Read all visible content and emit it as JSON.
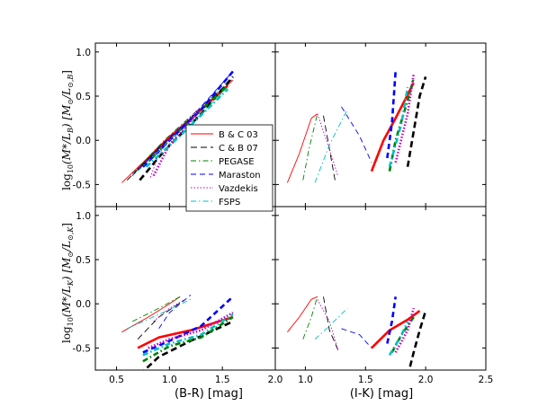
{
  "chart_data": {
    "type": "line",
    "xlabels": [
      "(B-R) [mag]",
      "(I-K) [mag]"
    ],
    "ylabels": [
      [
        "log",
        "10",
        "(M*/L",
        "B",
        ")  [M",
        "⊙",
        "/L",
        "⊙,B",
        "]"
      ],
      [
        "log",
        "10",
        "(M*/L",
        "K",
        ")  [M",
        "⊙",
        "/L",
        "⊙,K",
        "]"
      ]
    ],
    "xlim_left": [
      0.3,
      2.0
    ],
    "xlim_right": [
      0.75,
      2.5
    ],
    "ylim": [
      -0.75,
      1.1
    ],
    "xticks_left": [
      "0.5",
      "1.0",
      "1.5",
      "2.0"
    ],
    "xticks_right": [
      "1.0",
      "1.5",
      "2.0",
      "2.5"
    ],
    "yticks": [
      "-0.5",
      "0.0",
      "0.5",
      "1.0"
    ],
    "legend_position": "upper-left of top-right panel",
    "legend": [
      {
        "name": "B & C 03",
        "color": "#ff0000",
        "dash": ""
      },
      {
        "name": "C & B 07",
        "color": "#000000",
        "dash": "7,4"
      },
      {
        "name": "PEGASE",
        "color": "#008000",
        "dash": "6,3,1.5,3"
      },
      {
        "name": "Maraston",
        "color": "#0000ff",
        "dash": "6,4"
      },
      {
        "name": "Vazdekis",
        "color": "#bf00bf",
        "dash": "1.5,2"
      },
      {
        "name": "FSPS",
        "color": "#00bfbf",
        "dash": "6,3,1.5,3"
      }
    ],
    "panels": [
      {
        "name": "top-left: log M/L_B vs (B-R)",
        "series": [
          {
            "name": "B & C 03",
            "thin": [
              [
                0.55,
                -0.48
              ],
              [
                0.75,
                -0.25
              ],
              [
                1.0,
                0.05
              ],
              [
                1.3,
                0.35
              ],
              [
                1.6,
                0.68
              ]
            ],
            "thick": [
              [
                0.7,
                -0.33
              ],
              [
                0.9,
                -0.08
              ],
              [
                1.2,
                0.24
              ],
              [
                1.55,
                0.62
              ]
            ]
          },
          {
            "name": "C & B 07",
            "thin": [
              [
                0.6,
                -0.45
              ],
              [
                0.85,
                -0.15
              ],
              [
                1.2,
                0.25
              ],
              [
                1.6,
                0.7
              ]
            ],
            "thick": [
              [
                0.72,
                -0.45
              ],
              [
                0.95,
                -0.12
              ],
              [
                1.3,
                0.3
              ],
              [
                1.6,
                0.72
              ]
            ]
          },
          {
            "name": "PEGASE",
            "thin": [
              [
                0.65,
                -0.38
              ],
              [
                0.95,
                0.0
              ],
              [
                1.3,
                0.38
              ],
              [
                1.55,
                0.65
              ]
            ],
            "thick": [
              [
                0.75,
                -0.3
              ],
              [
                1.1,
                0.12
              ],
              [
                1.55,
                0.62
              ]
            ]
          },
          {
            "name": "Maraston",
            "thin": [
              [
                0.65,
                -0.4
              ],
              [
                0.9,
                -0.08
              ],
              [
                1.2,
                0.25
              ],
              [
                1.6,
                0.78
              ]
            ],
            "thick": [
              [
                0.75,
                -0.3
              ],
              [
                1.0,
                0.0
              ],
              [
                1.3,
                0.35
              ],
              [
                1.6,
                0.78
              ]
            ]
          },
          {
            "name": "Vazdekis",
            "thin": [
              [
                0.82,
                -0.42
              ],
              [
                0.9,
                -0.15
              ],
              [
                1.1,
                0.15
              ],
              [
                1.3,
                0.38
              ]
            ],
            "thick": [
              [
                0.85,
                -0.4
              ],
              [
                1.0,
                -0.05
              ],
              [
                1.3,
                0.35
              ]
            ]
          },
          {
            "name": "FSPS",
            "thin": [
              [
                0.7,
                -0.35
              ],
              [
                1.0,
                0.0
              ],
              [
                1.3,
                0.3
              ],
              [
                1.55,
                0.6
              ]
            ],
            "thick": [
              [
                0.78,
                -0.3
              ],
              [
                1.1,
                0.05
              ],
              [
                1.55,
                0.58
              ]
            ]
          }
        ]
      },
      {
        "name": "top-right: log M/L_B vs (I-K)",
        "series": [
          {
            "name": "B & C 03",
            "thin": [
              [
                0.85,
                -0.48
              ],
              [
                0.95,
                -0.15
              ],
              [
                1.05,
                0.25
              ],
              [
                1.1,
                0.3
              ]
            ],
            "thick": [
              [
                1.55,
                -0.35
              ],
              [
                1.65,
                0.0
              ],
              [
                1.75,
                0.25
              ],
              [
                1.9,
                0.65
              ]
            ]
          },
          {
            "name": "C & B 07",
            "thin": [
              [
                1.15,
                0.28
              ],
              [
                1.2,
                -0.1
              ],
              [
                1.25,
                -0.48
              ]
            ],
            "thick": [
              [
                1.85,
                -0.3
              ],
              [
                1.9,
                0.1
              ],
              [
                1.95,
                0.5
              ],
              [
                2.0,
                0.72
              ]
            ]
          },
          {
            "name": "PEGASE",
            "thin": [
              [
                0.98,
                -0.45
              ],
              [
                1.03,
                -0.1
              ],
              [
                1.1,
                0.3
              ]
            ],
            "thick": [
              [
                1.7,
                -0.35
              ],
              [
                1.75,
                0.0
              ],
              [
                1.85,
                0.45
              ],
              [
                1.9,
                0.7
              ]
            ]
          },
          {
            "name": "Maraston",
            "thin": [
              [
                1.3,
                0.38
              ],
              [
                1.45,
                0.05
              ],
              [
                1.55,
                -0.25
              ]
            ],
            "thick": [
              [
                1.68,
                -0.2
              ],
              [
                1.72,
                0.2
              ],
              [
                1.75,
                0.78
              ]
            ]
          },
          {
            "name": "Vazdekis",
            "thin": [
              [
                1.1,
                0.3
              ],
              [
                1.2,
                -0.1
              ],
              [
                1.27,
                -0.4
              ]
            ],
            "thick": [
              [
                1.75,
                -0.25
              ],
              [
                1.85,
                0.3
              ],
              [
                1.9,
                0.75
              ]
            ]
          },
          {
            "name": "FSPS",
            "thin": [
              [
                1.08,
                -0.48
              ],
              [
                1.2,
                -0.05
              ],
              [
                1.35,
                0.35
              ]
            ],
            "thick": [
              [
                1.7,
                -0.3
              ],
              [
                1.8,
                0.2
              ],
              [
                1.85,
                0.6
              ]
            ]
          }
        ]
      },
      {
        "name": "bottom-left: log M/L_K vs (B-R)",
        "series": [
          {
            "name": "B & C 03",
            "thin": [
              [
                0.55,
                -0.32
              ],
              [
                0.8,
                -0.15
              ],
              [
                1.0,
                0.0
              ],
              [
                1.1,
                0.08
              ]
            ],
            "thick": [
              [
                0.7,
                -0.5
              ],
              [
                0.9,
                -0.38
              ],
              [
                1.2,
                -0.3
              ],
              [
                1.6,
                -0.15
              ]
            ]
          },
          {
            "name": "C & B 07",
            "thin": [
              [
                0.7,
                -0.4
              ],
              [
                0.9,
                -0.15
              ],
              [
                1.15,
                0.05
              ]
            ],
            "thick": [
              [
                0.72,
                -0.8
              ],
              [
                0.9,
                -0.6
              ],
              [
                1.2,
                -0.42
              ],
              [
                1.6,
                -0.2
              ]
            ]
          },
          {
            "name": "PEGASE",
            "thin": [
              [
                0.65,
                -0.2
              ],
              [
                0.9,
                -0.05
              ],
              [
                1.1,
                0.08
              ]
            ],
            "thick": [
              [
                0.75,
                -0.65
              ],
              [
                1.0,
                -0.48
              ],
              [
                1.3,
                -0.38
              ],
              [
                1.6,
                -0.15
              ]
            ]
          },
          {
            "name": "Maraston",
            "thin": [
              [
                0.9,
                -0.28
              ],
              [
                1.0,
                -0.1
              ],
              [
                1.2,
                0.1
              ]
            ],
            "thick": [
              [
                0.75,
                -0.55
              ],
              [
                1.0,
                -0.42
              ],
              [
                1.3,
                -0.25
              ],
              [
                1.6,
                0.08
              ]
            ]
          },
          {
            "name": "Vazdekis",
            "thin": [
              [
                0.85,
                -0.2
              ],
              [
                1.0,
                -0.05
              ],
              [
                1.15,
                0.05
              ]
            ],
            "thick": [
              [
                0.8,
                -0.5
              ],
              [
                1.0,
                -0.4
              ],
              [
                1.3,
                -0.3
              ],
              [
                1.6,
                -0.1
              ]
            ]
          },
          {
            "name": "FSPS",
            "thin": [
              [
                0.6,
                -0.28
              ],
              [
                0.9,
                -0.12
              ],
              [
                1.2,
                0.05
              ]
            ],
            "thick": [
              [
                0.75,
                -0.58
              ],
              [
                1.0,
                -0.45
              ],
              [
                1.3,
                -0.35
              ],
              [
                1.6,
                -0.12
              ]
            ]
          }
        ]
      },
      {
        "name": "bottom-right: log M/L_K vs (I-K)",
        "series": [
          {
            "name": "B & C 03",
            "thin": [
              [
                0.85,
                -0.32
              ],
              [
                0.95,
                -0.15
              ],
              [
                1.05,
                0.05
              ],
              [
                1.1,
                0.08
              ]
            ],
            "thick": [
              [
                1.55,
                -0.5
              ],
              [
                1.7,
                -0.3
              ],
              [
                1.85,
                -0.18
              ],
              [
                1.95,
                -0.08
              ]
            ]
          },
          {
            "name": "C & B 07",
            "thin": [
              [
                1.15,
                0.08
              ],
              [
                1.2,
                -0.3
              ],
              [
                1.28,
                -0.55
              ]
            ],
            "thick": [
              [
                1.85,
                -0.82
              ],
              [
                1.9,
                -0.55
              ],
              [
                1.95,
                -0.3
              ],
              [
                2.0,
                -0.08
              ]
            ]
          },
          {
            "name": "PEGASE",
            "thin": [
              [
                0.98,
                -0.4
              ],
              [
                1.05,
                -0.15
              ],
              [
                1.1,
                0.08
              ]
            ],
            "thick": [
              [
                1.72,
                -0.55
              ],
              [
                1.8,
                -0.35
              ],
              [
                1.9,
                -0.15
              ]
            ]
          },
          {
            "name": "Maraston",
            "thin": [
              [
                1.3,
                -0.28
              ],
              [
                1.45,
                -0.35
              ],
              [
                1.55,
                -0.5
              ]
            ],
            "thick": [
              [
                1.68,
                -0.45
              ],
              [
                1.72,
                -0.2
              ],
              [
                1.75,
                0.08
              ]
            ]
          },
          {
            "name": "Vazdekis",
            "thin": [
              [
                1.1,
                0.05
              ],
              [
                1.2,
                -0.2
              ],
              [
                1.27,
                -0.52
              ]
            ],
            "thick": [
              [
                1.75,
                -0.55
              ],
              [
                1.85,
                -0.3
              ],
              [
                1.9,
                -0.05
              ]
            ]
          },
          {
            "name": "FSPS",
            "thin": [
              [
                1.08,
                -0.4
              ],
              [
                1.2,
                -0.25
              ],
              [
                1.35,
                -0.05
              ]
            ],
            "thick": [
              [
                1.7,
                -0.58
              ],
              [
                1.8,
                -0.35
              ],
              [
                1.85,
                -0.2
              ]
            ]
          }
        ]
      }
    ]
  }
}
